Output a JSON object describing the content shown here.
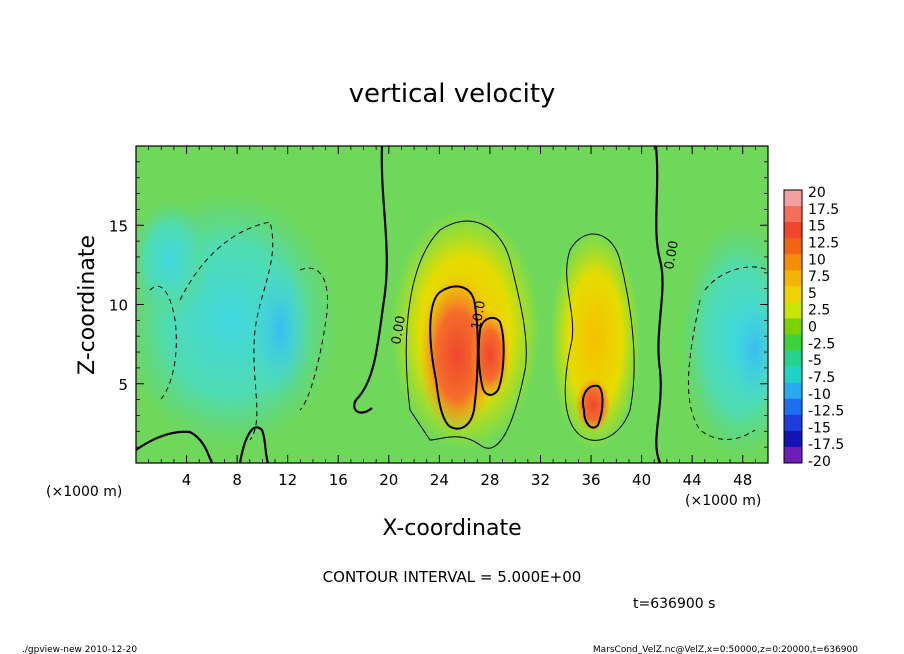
{
  "chart_data": {
    "type": "heatmap",
    "title": "vertical velocity",
    "xlabel": "X-coordinate",
    "ylabel": "Z-coordinate",
    "x_unit_left": "(×1000 m)",
    "x_unit_right": "(×1000 m)",
    "xlim": [
      0,
      50
    ],
    "ylim": [
      0,
      20
    ],
    "x_ticks": [
      4,
      8,
      12,
      16,
      20,
      24,
      28,
      32,
      36,
      40,
      44,
      48
    ],
    "y_ticks": [
      5,
      10,
      15
    ],
    "colorbar_labels": [
      "20",
      "17.5",
      "15",
      "12.5",
      "10",
      "7.5",
      "5",
      "2.5",
      "0",
      "-2.5",
      "-5",
      "-7.5",
      "-10",
      "-12.5",
      "-15",
      "-17.5",
      "-20"
    ],
    "colorbar_colors": [
      "#f4a0a0",
      "#f46e5a",
      "#f0462d",
      "#f06414",
      "#f58c0a",
      "#f5b400",
      "#f0d200",
      "#c8e600",
      "#7ad200",
      "#3cd23c",
      "#28d28c",
      "#1ed2c8",
      "#28aaf0",
      "#1e6ef0",
      "#1e3cdc",
      "#1414b4",
      "#6e1eb4"
    ],
    "contour_labels": [
      "0.00",
      "10.0",
      "0.00"
    ],
    "contour_interval": "CONTOUR INTERVAL = 5.000E+00",
    "time": "t=636900 s",
    "footer_left": "./gpview-new 2010-12-20",
    "footer_right": "MarsCond_VelZ.nc@VelZ,x=0:50000,z=0:20000,t=636900"
  }
}
